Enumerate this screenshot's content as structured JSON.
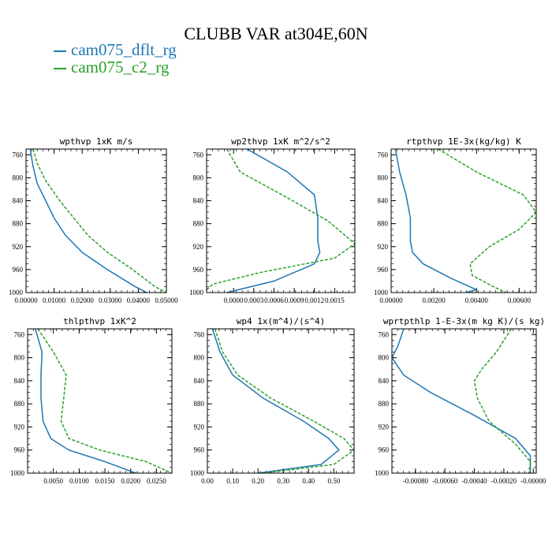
{
  "title": "CLUBB VAR at304E,60N",
  "legend": [
    {
      "label": "cam075_dflt_rg",
      "color": "#1f77b4"
    },
    {
      "label": "cam075_c2_rg",
      "color": "#2ca02c"
    }
  ],
  "chart_data": [
    {
      "type": "line",
      "title": "wpthvp   1xK  m/s",
      "xlim": [
        0,
        0.05
      ],
      "ylim": [
        1000,
        750
      ],
      "xticks": [
        0,
        0.01,
        0.02,
        0.03,
        0.04,
        0.05
      ],
      "xtick_labels": [
        "0.00000",
        "0.01000",
        "0.02000",
        "0.03000",
        "0.04000",
        "0.05000"
      ],
      "yticks": [
        760,
        800,
        840,
        880,
        920,
        960,
        1000
      ],
      "ytick_labels": [
        "760",
        "800",
        "840",
        "880",
        "920",
        "960",
        "1000"
      ],
      "series": [
        {
          "name": "cam075_dflt_rg",
          "x": [
            0.0015,
            0.0025,
            0.004,
            0.007,
            0.01,
            0.014,
            0.02,
            0.029,
            0.039,
            0.043
          ],
          "y": [
            750,
            780,
            810,
            840,
            870,
            900,
            930,
            960,
            990,
            1000
          ]
        },
        {
          "name": "cam075_c2_rg",
          "x": [
            0.0025,
            0.004,
            0.007,
            0.012,
            0.017,
            0.022,
            0.029,
            0.038,
            0.046,
            0.05
          ],
          "y": [
            750,
            775,
            805,
            840,
            870,
            900,
            930,
            960,
            990,
            1000
          ]
        }
      ]
    },
    {
      "type": "line",
      "title": "wp2thvp   1xK  m^2/s^2",
      "xlim": [
        -0.0004,
        0.0018
      ],
      "ylim": [
        1000,
        750
      ],
      "xticks": [
        0,
        0.0003,
        0.0006,
        0.0009,
        0.0012,
        0.0015
      ],
      "xtick_labels": [
        "0.0000",
        "0.0003",
        "0.0006",
        "0.0009",
        "0.0012",
        "0.0015"
      ],
      "yticks": [
        760,
        800,
        840,
        880,
        920,
        960,
        1000
      ],
      "ytick_labels": [
        "760",
        "800",
        "840",
        "880",
        "920",
        "960",
        "1000"
      ],
      "series": [
        {
          "name": "cam075_dflt_rg",
          "x": [
            0.0002,
            0.0008,
            0.0012,
            0.00125,
            0.00125,
            0.00128,
            0.0012,
            0.0006,
            -0.0001
          ],
          "y": [
            750,
            790,
            830,
            870,
            910,
            930,
            950,
            980,
            1000
          ]
        },
        {
          "name": "cam075_c2_rg",
          "x": [
            -0.0001,
            0.0001,
            0.0008,
            0.0014,
            0.0018,
            0.0015,
            0.0004,
            -0.0003,
            -0.0004
          ],
          "y": [
            750,
            790,
            835,
            875,
            915,
            940,
            965,
            985,
            995
          ]
        }
      ]
    },
    {
      "type": "line",
      "title": "rtpthvp   1E-3x(kg/kg) K",
      "xlim": [
        0,
        0.0068
      ],
      "ylim": [
        1000,
        750
      ],
      "xticks": [
        0,
        0.002,
        0.004,
        0.006
      ],
      "xtick_labels": [
        "0.00000",
        "0.00200",
        "0.00400",
        "0.00600"
      ],
      "yticks": [
        760,
        800,
        840,
        880,
        920,
        960,
        1000
      ],
      "ytick_labels": [
        "760",
        "800",
        "840",
        "880",
        "920",
        "960",
        "1000"
      ],
      "series": [
        {
          "name": "cam075_dflt_rg",
          "x": [
            0.0002,
            0.0004,
            0.0007,
            0.0009,
            0.0009,
            0.001,
            0.0015,
            0.0028,
            0.004,
            0.0035
          ],
          "y": [
            750,
            790,
            830,
            870,
            910,
            930,
            950,
            975,
            995,
            1000
          ]
        },
        {
          "name": "cam075_c2_rg",
          "x": [
            0.0022,
            0.004,
            0.0062,
            0.0068,
            0.006,
            0.0046,
            0.0037,
            0.0038,
            0.0048,
            0.0054
          ],
          "y": [
            750,
            790,
            830,
            860,
            890,
            920,
            950,
            970,
            990,
            1000
          ]
        }
      ]
    },
    {
      "type": "line",
      "title": "thlpthvp   1xK^2",
      "xlim": [
        0,
        0.028
      ],
      "ylim": [
        1000,
        750
      ],
      "xticks": [
        0.005,
        0.01,
        0.015,
        0.02,
        0.025
      ],
      "xtick_labels": [
        "0.0050",
        "0.0100",
        "0.0150",
        "0.0200",
        "0.0250"
      ],
      "yticks": [
        760,
        800,
        840,
        880,
        920,
        960,
        1000
      ],
      "ytick_labels": [
        "760",
        "800",
        "840",
        "880",
        "920",
        "960",
        "1000"
      ],
      "series": [
        {
          "name": "cam075_dflt_rg",
          "x": [
            0.0015,
            0.0028,
            0.0026,
            0.0026,
            0.003,
            0.0045,
            0.008,
            0.015,
            0.021
          ],
          "y": [
            750,
            790,
            830,
            870,
            910,
            940,
            960,
            980,
            1000
          ]
        },
        {
          "name": "cam075_c2_rg",
          "x": [
            0.002,
            0.005,
            0.0075,
            0.007,
            0.0065,
            0.008,
            0.014,
            0.023,
            0.028
          ],
          "y": [
            750,
            790,
            830,
            870,
            910,
            940,
            960,
            980,
            1000
          ]
        }
      ]
    },
    {
      "type": "line",
      "title": "wp4   1x(m^4)/(s^4)",
      "xlim": [
        0,
        0.58
      ],
      "ylim": [
        1000,
        750
      ],
      "xticks": [
        0,
        0.1,
        0.2,
        0.3,
        0.4,
        0.5
      ],
      "xtick_labels": [
        "0.00",
        "0.10",
        "0.20",
        "0.30",
        "0.40",
        "0.50"
      ],
      "yticks": [
        760,
        800,
        840,
        880,
        920,
        960,
        1000
      ],
      "ytick_labels": [
        "760",
        "800",
        "840",
        "880",
        "920",
        "960",
        "1000"
      ],
      "series": [
        {
          "name": "cam075_dflt_rg",
          "x": [
            0.02,
            0.05,
            0.1,
            0.22,
            0.38,
            0.48,
            0.52,
            0.45,
            0.2
          ],
          "y": [
            750,
            790,
            830,
            870,
            910,
            940,
            960,
            985,
            1000
          ]
        },
        {
          "name": "cam075_c2_rg",
          "x": [
            0.03,
            0.06,
            0.12,
            0.25,
            0.42,
            0.54,
            0.58,
            0.5,
            0.22
          ],
          "y": [
            750,
            790,
            830,
            870,
            910,
            940,
            960,
            985,
            1000
          ]
        }
      ]
    },
    {
      "type": "line",
      "title": "wprtpthlp   1-E-3x(m kg K)/(s kg)",
      "xlim": [
        -0.00096,
        2e-05
      ],
      "ylim": [
        1000,
        750
      ],
      "xticks": [
        -0.0008,
        -0.0006,
        -0.0004,
        -0.0002,
        0
      ],
      "xtick_labels": [
        "-0.00080",
        "-0.00060",
        "-0.00040",
        "-0.00020",
        "-0.00000"
      ],
      "yticks": [
        760,
        800,
        840,
        880,
        920,
        960,
        1000
      ],
      "ytick_labels": [
        "760",
        "800",
        "840",
        "880",
        "920",
        "960",
        "1000"
      ],
      "series": [
        {
          "name": "cam075_dflt_rg",
          "x": [
            -0.00088,
            -0.00092,
            -0.00096,
            -0.00088,
            -0.0007,
            -0.0004,
            -0.00012,
            -2e-05,
            -2e-05
          ],
          "y": [
            750,
            780,
            800,
            830,
            860,
            900,
            940,
            970,
            1000
          ]
        },
        {
          "name": "cam075_c2_rg",
          "x": [
            -0.00015,
            -0.00025,
            -0.00035,
            -0.0004,
            -0.00038,
            -0.0003,
            -0.00012,
            -2e-05,
            -3e-05
          ],
          "y": [
            750,
            790,
            820,
            840,
            870,
            910,
            950,
            980,
            1000
          ]
        }
      ]
    }
  ]
}
